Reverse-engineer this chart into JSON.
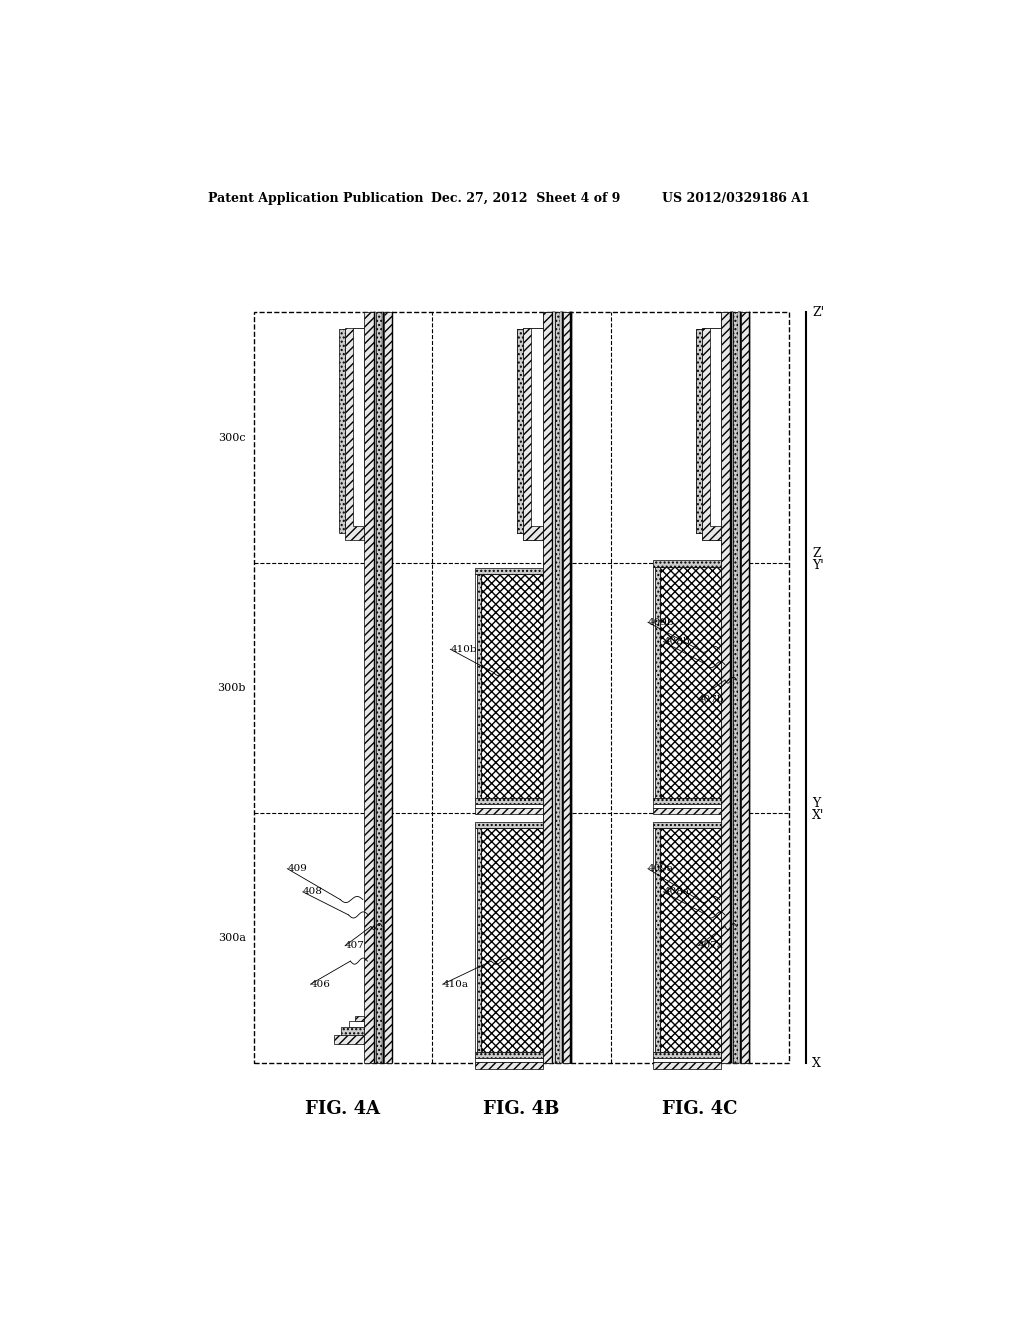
{
  "bg_color": "#ffffff",
  "header_text": "Patent Application Publication",
  "header_date": "Dec. 27, 2012  Sheet 4 of 9",
  "header_patent": "US 2012/0329186 A1",
  "fig_labels": [
    "FIG. 4A",
    "FIG. 4B",
    "FIG. 4C"
  ],
  "row_labels_left": [
    "300a",
    "300b",
    "300c"
  ],
  "axis_labels_right": [
    "X",
    "X'",
    "Y",
    "Y'",
    "Z",
    "Z'"
  ]
}
